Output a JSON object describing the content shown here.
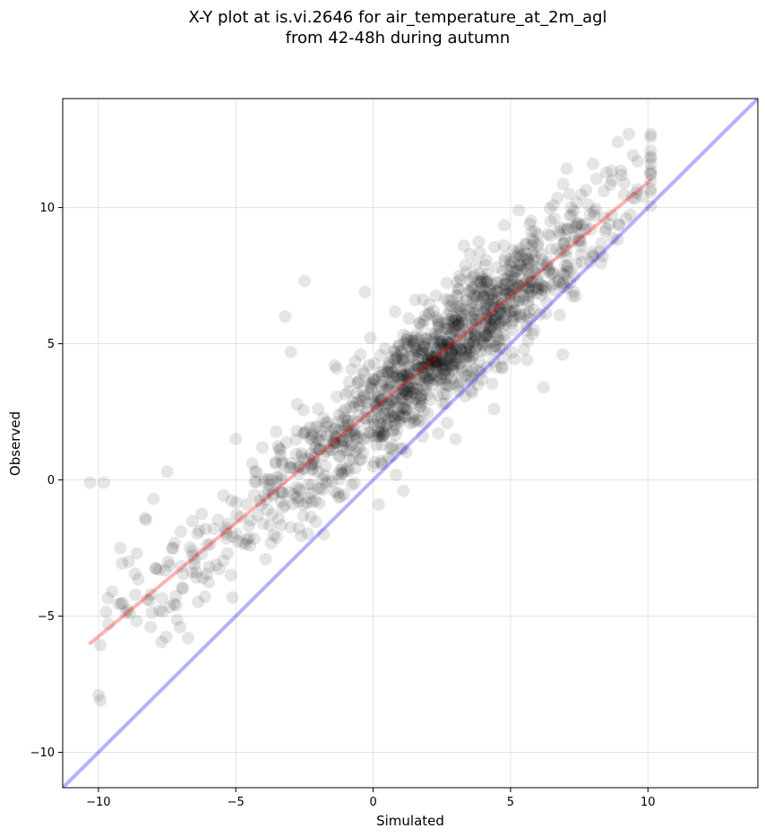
{
  "chart_data": {
    "type": "scatter",
    "title": [
      "X-Y plot at is.vi.2646 for air_temperature_at_2m_agl",
      "from 42-48h during autumn"
    ],
    "xlabel": "Simulated",
    "ylabel": "Observed",
    "xlim": [
      -11.3,
      14.0
    ],
    "ylim": [
      -11.3,
      14.0
    ],
    "xticks": [
      -10,
      -5,
      0,
      5,
      10
    ],
    "xtick_labels": [
      "−10",
      "−5",
      "0",
      "5",
      "10"
    ],
    "yticks": [
      -10,
      -5,
      0,
      5,
      10
    ],
    "ytick_labels": [
      "−10",
      "−5",
      "0",
      "5",
      "10"
    ],
    "grid": true,
    "point_color": "#000000",
    "point_alpha": 0.1,
    "n_points_approx": 1400,
    "points_sample": [
      [
        -10.3,
        -0.1
      ],
      [
        -9.8,
        -0.1
      ],
      [
        -9.5,
        -4.1
      ],
      [
        -9.2,
        -2.5
      ],
      [
        -8.9,
        -3.0
      ],
      [
        -8.6,
        -2.7
      ],
      [
        -8.3,
        -1.4
      ],
      [
        -8.1,
        -5.4
      ],
      [
        -8.0,
        -0.7
      ],
      [
        -7.8,
        -3.3
      ],
      [
        -7.5,
        0.3
      ],
      [
        -7.3,
        -2.5
      ],
      [
        -7.0,
        -1.9
      ],
      [
        -6.5,
        -3.1
      ],
      [
        -6.2,
        -3.6
      ],
      [
        -5.8,
        -1.8
      ],
      [
        -5.3,
        -2.7
      ],
      [
        -5.0,
        1.5
      ],
      [
        -4.6,
        -0.9
      ],
      [
        -4.4,
        0.6
      ],
      [
        -4.0,
        -1.6
      ],
      [
        -3.5,
        0.1
      ],
      [
        -3.2,
        6.0
      ],
      [
        -3.0,
        4.7
      ],
      [
        -2.5,
        7.3
      ],
      [
        -2.2,
        1.6
      ],
      [
        -2.0,
        0.3
      ],
      [
        -1.8,
        -2.0
      ],
      [
        -1.4,
        4.2
      ],
      [
        -1.0,
        2.6
      ],
      [
        -0.6,
        1.5
      ],
      [
        -0.3,
        6.9
      ],
      [
        0.0,
        0.5
      ],
      [
        0.2,
        -0.9
      ],
      [
        0.5,
        3.4
      ],
      [
        0.8,
        2.2
      ],
      [
        1.1,
        -0.4
      ],
      [
        1.5,
        5.1
      ],
      [
        1.8,
        3.5
      ],
      [
        2.2,
        6.2
      ],
      [
        2.5,
        4.8
      ],
      [
        2.8,
        5.0
      ],
      [
        3.0,
        1.5
      ],
      [
        3.3,
        8.6
      ],
      [
        3.6,
        3.2
      ],
      [
        4.0,
        6.7
      ],
      [
        4.4,
        2.6
      ],
      [
        4.7,
        4.1
      ],
      [
        5.1,
        8.0
      ],
      [
        5.3,
        9.9
      ],
      [
        5.6,
        4.4
      ],
      [
        5.9,
        7.0
      ],
      [
        6.2,
        3.4
      ],
      [
        6.6,
        9.6
      ],
      [
        6.9,
        4.6
      ],
      [
        7.2,
        10.0
      ],
      [
        7.6,
        8.0
      ],
      [
        8.0,
        11.6
      ],
      [
        8.4,
        10.6
      ],
      [
        8.9,
        12.4
      ],
      [
        9.3,
        12.7
      ],
      [
        9.8,
        10.4
      ],
      [
        10.1,
        11.6
      ]
    ],
    "lines": [
      {
        "name": "fit",
        "x": [
          -10.3,
          10.1
        ],
        "y": [
          -6.0,
          11.0
        ],
        "color": "#ff0000",
        "alpha": 0.3
      },
      {
        "name": "identity",
        "x": [
          -11.3,
          14.0
        ],
        "y": [
          -11.3,
          14.0
        ],
        "color": "#0000ff",
        "alpha": 0.3
      }
    ]
  }
}
